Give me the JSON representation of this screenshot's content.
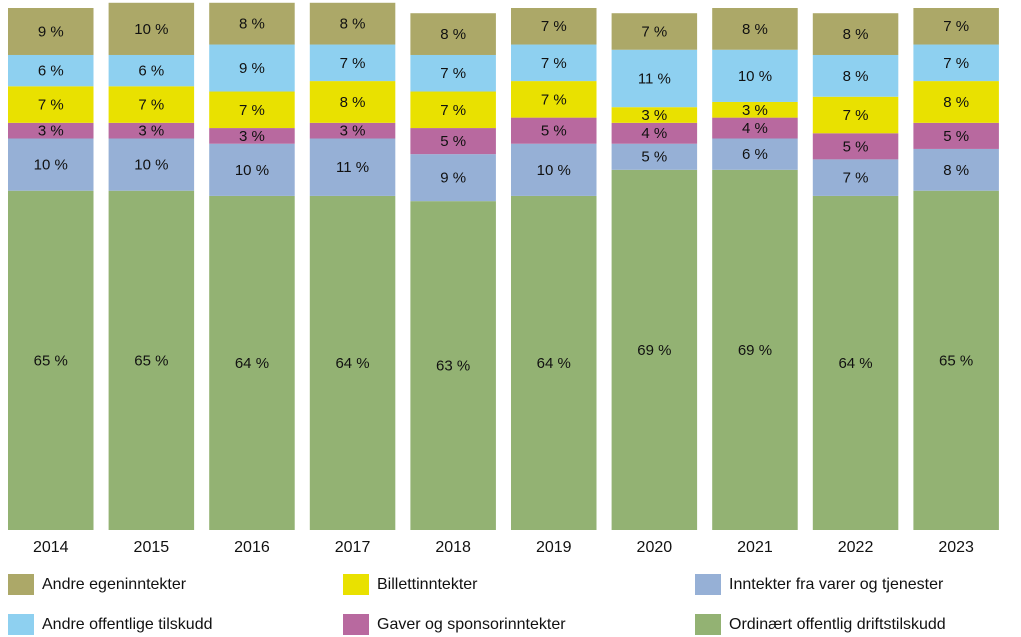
{
  "chart_data": {
    "type": "stacked_bar",
    "categories": [
      "2014",
      "2015",
      "2016",
      "2017",
      "2018",
      "2019",
      "2020",
      "2021",
      "2022",
      "2023"
    ],
    "ylim": [
      0,
      100
    ],
    "series": [
      {
        "name": "Ordinært offentlig driftstilskudd",
        "color": "#93b273",
        "values": [
          65,
          65,
          64,
          64,
          63,
          64,
          69,
          69,
          64,
          65
        ],
        "value_labels": [
          "65 %",
          "65 %",
          "64 %",
          "64 %",
          "63 %",
          "64 %",
          "69 %",
          "69 %",
          "64 %",
          "65 %"
        ]
      },
      {
        "name": "Inntekter fra varer og tjenester",
        "color": "#96b0d6",
        "values": [
          10,
          10,
          10,
          11,
          9,
          10,
          5,
          6,
          7,
          8
        ],
        "value_labels": [
          "10 %",
          "10 %",
          "10 %",
          "11 %",
          "9 %",
          "10 %",
          "5 %",
          "6 %",
          "7 %",
          "8 %"
        ]
      },
      {
        "name": "Gaver og sponsorinntekter",
        "color": "#b8699f",
        "values": [
          3,
          3,
          3,
          3,
          5,
          5,
          4,
          4,
          5,
          5
        ],
        "value_labels": [
          "3 %",
          "3 %",
          "3 %",
          "3 %",
          "5 %",
          "5 %",
          "4 %",
          "4 %",
          "5 %",
          "5 %"
        ]
      },
      {
        "name": "Billettinntekter",
        "color": "#e9e100",
        "values": [
          7,
          7,
          7,
          8,
          7,
          7,
          3,
          3,
          7,
          8
        ],
        "value_labels": [
          "7 %",
          "7 %",
          "7 %",
          "8 %",
          "7 %",
          "7 %",
          "3 %",
          "3 %",
          "7 %",
          "8 %"
        ]
      },
      {
        "name": "Andre offentlige tilskudd",
        "color": "#8ed0f0",
        "values": [
          6,
          6,
          9,
          7,
          7,
          7,
          11,
          10,
          8,
          7
        ],
        "value_labels": [
          "6 %",
          "6 %",
          "9 %",
          "7 %",
          "7 %",
          "7 %",
          "11 %",
          "10 %",
          "8 %",
          "7 %"
        ]
      },
      {
        "name": "Andre egeninntekter",
        "color": "#aca868",
        "values": [
          9,
          10,
          8,
          8,
          8,
          7,
          7,
          8,
          8,
          7
        ],
        "value_labels": [
          "9 %",
          "10 %",
          "8 %",
          "8 %",
          "8 %",
          "7 %",
          "7 %",
          "8 %",
          "8 %",
          "7 %"
        ]
      }
    ]
  }
}
